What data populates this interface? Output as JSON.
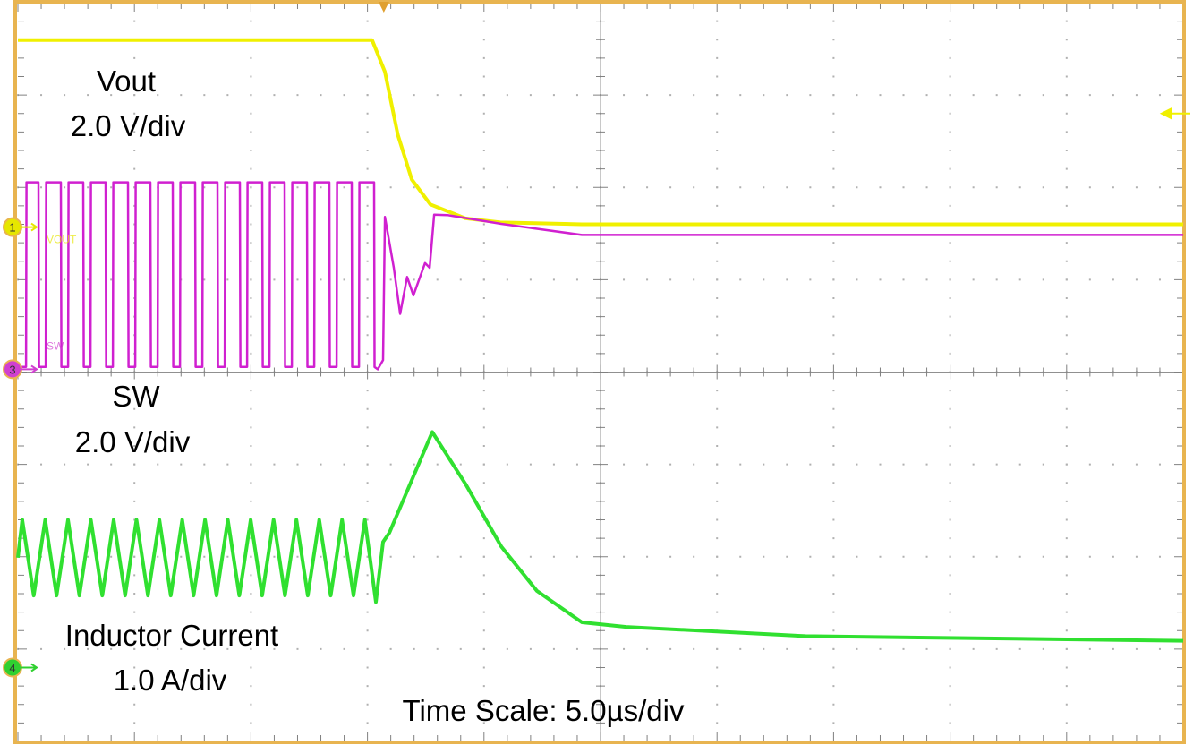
{
  "chart_data": {
    "type": "line",
    "title": "",
    "time_scale_label": "Time Scale: 5.0µs/div",
    "x_unit": "µs",
    "xlim": [
      0,
      50
    ],
    "x_divisions": 10,
    "y_divisions": 8,
    "grid": true,
    "frame_color": "#e8b450",
    "trigger_marker_color": "#e0a030",
    "trigger_time": 15.7,
    "series": [
      {
        "name": "Vout",
        "scale_label": "2.0 V/div",
        "volts_per_div": 2.0,
        "channel": "1",
        "trace_tag": "VOUT",
        "ground_div_from_top": 2.43,
        "color": "#f0f000",
        "marker_color": "#e6e600",
        "steady_state": {
          "kind": "dc",
          "level": 4.05,
          "until": 15.2
        },
        "transient": [
          [
            15.2,
            4.05
          ],
          [
            15.75,
            3.36
          ],
          [
            16.3,
            2.0
          ],
          [
            16.9,
            1.03
          ],
          [
            17.7,
            0.49
          ],
          [
            19.2,
            0.19
          ],
          [
            20.7,
            0.1
          ],
          [
            24.2,
            0.06
          ],
          [
            50,
            0.06
          ]
        ]
      },
      {
        "name": "SW",
        "scale_label": "2.0 V/div",
        "volts_per_div": 2.0,
        "channel": "3",
        "trace_tag": "SW",
        "ground_div_from_top": 3.97,
        "color": "#d020d0",
        "marker_color": "#d040d0",
        "steady_state": {
          "kind": "pulse",
          "high": 4.05,
          "low": 0.05,
          "period": 0.96,
          "first_low_center": 1.04,
          "low_width": 0.31,
          "until": 15.44
        },
        "transient": [
          [
            15.44,
            0.0
          ],
          [
            15.67,
            0.2
          ],
          [
            15.75,
            3.3
          ],
          [
            16.13,
            2.2
          ],
          [
            16.4,
            1.2
          ],
          [
            16.7,
            2.0
          ],
          [
            16.97,
            1.6
          ],
          [
            17.47,
            2.3
          ],
          [
            17.67,
            2.2
          ],
          [
            17.86,
            3.35
          ],
          [
            18.43,
            3.34
          ],
          [
            20.74,
            3.15
          ],
          [
            24.2,
            2.91
          ],
          [
            50,
            2.91
          ]
        ]
      },
      {
        "name": "Inductor Current",
        "scale_label": "1.0 A/div",
        "volts_per_div": 1.0,
        "channel": "4",
        "trace_tag": "",
        "ground_div_from top_note": "",
        "ground_div_from_top": 7.2,
        "color": "#30e030",
        "marker_color": "#30d030",
        "steady_state": {
          "kind": "triangle",
          "peak": 1.6,
          "valley": 0.78,
          "period": 0.98,
          "first_peak": 0.19,
          "until": 15.36
        },
        "transient": [
          [
            15.36,
            0.71
          ],
          [
            15.67,
            1.36
          ],
          [
            15.94,
            1.46
          ],
          [
            17.78,
            2.55
          ],
          [
            19.2,
            1.99
          ],
          [
            20.74,
            1.31
          ],
          [
            22.27,
            0.83
          ],
          [
            24.2,
            0.49
          ],
          [
            26.1,
            0.44
          ],
          [
            33.8,
            0.34
          ],
          [
            50,
            0.29
          ]
        ]
      }
    ]
  }
}
